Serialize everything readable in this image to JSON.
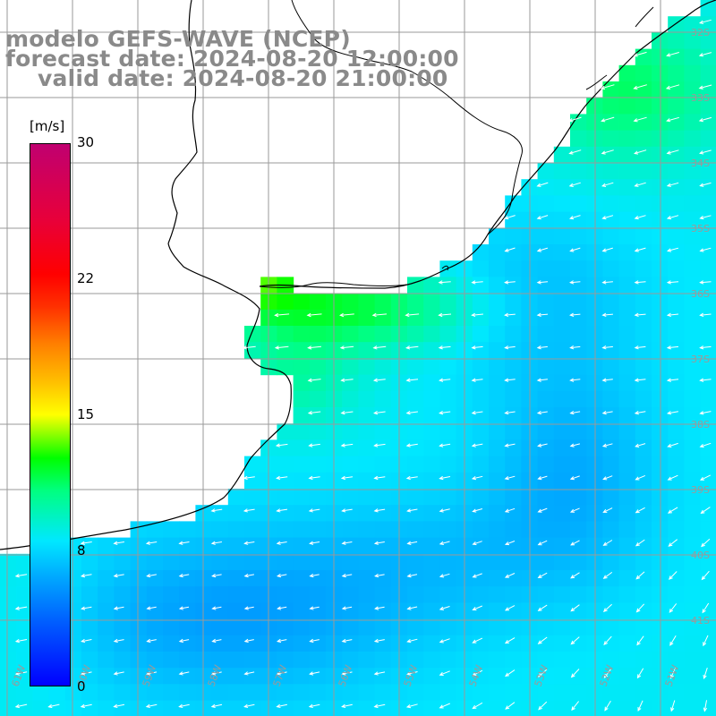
{
  "titles": {
    "model": "modelo GEFS-WAVE (NCEP)",
    "forecast": "forecast date: 2024-08-20 12:00:00",
    "valid": "valid date: 2024-08-20 21:00:00"
  },
  "colorbar": {
    "unit": "[m/s]",
    "min": 0,
    "max": 30,
    "ticks": [
      "30",
      "22",
      "15",
      "8",
      "0"
    ]
  },
  "grid": {
    "lat_labels": [
      "32S",
      "33S",
      "34S",
      "35S",
      "36S",
      "37S",
      "38S",
      "39S",
      "40S",
      "41S"
    ],
    "lon_labels": [
      "61W",
      "60W",
      "59W",
      "58W",
      "57W",
      "56W",
      "55W",
      "54W",
      "53W",
      "52W",
      "51W"
    ]
  },
  "colors": {
    "grid_line": "#9a9a9a",
    "coast_line": "#000000",
    "arrow": "#ffffff",
    "title_text": "#8a8a8a"
  }
}
